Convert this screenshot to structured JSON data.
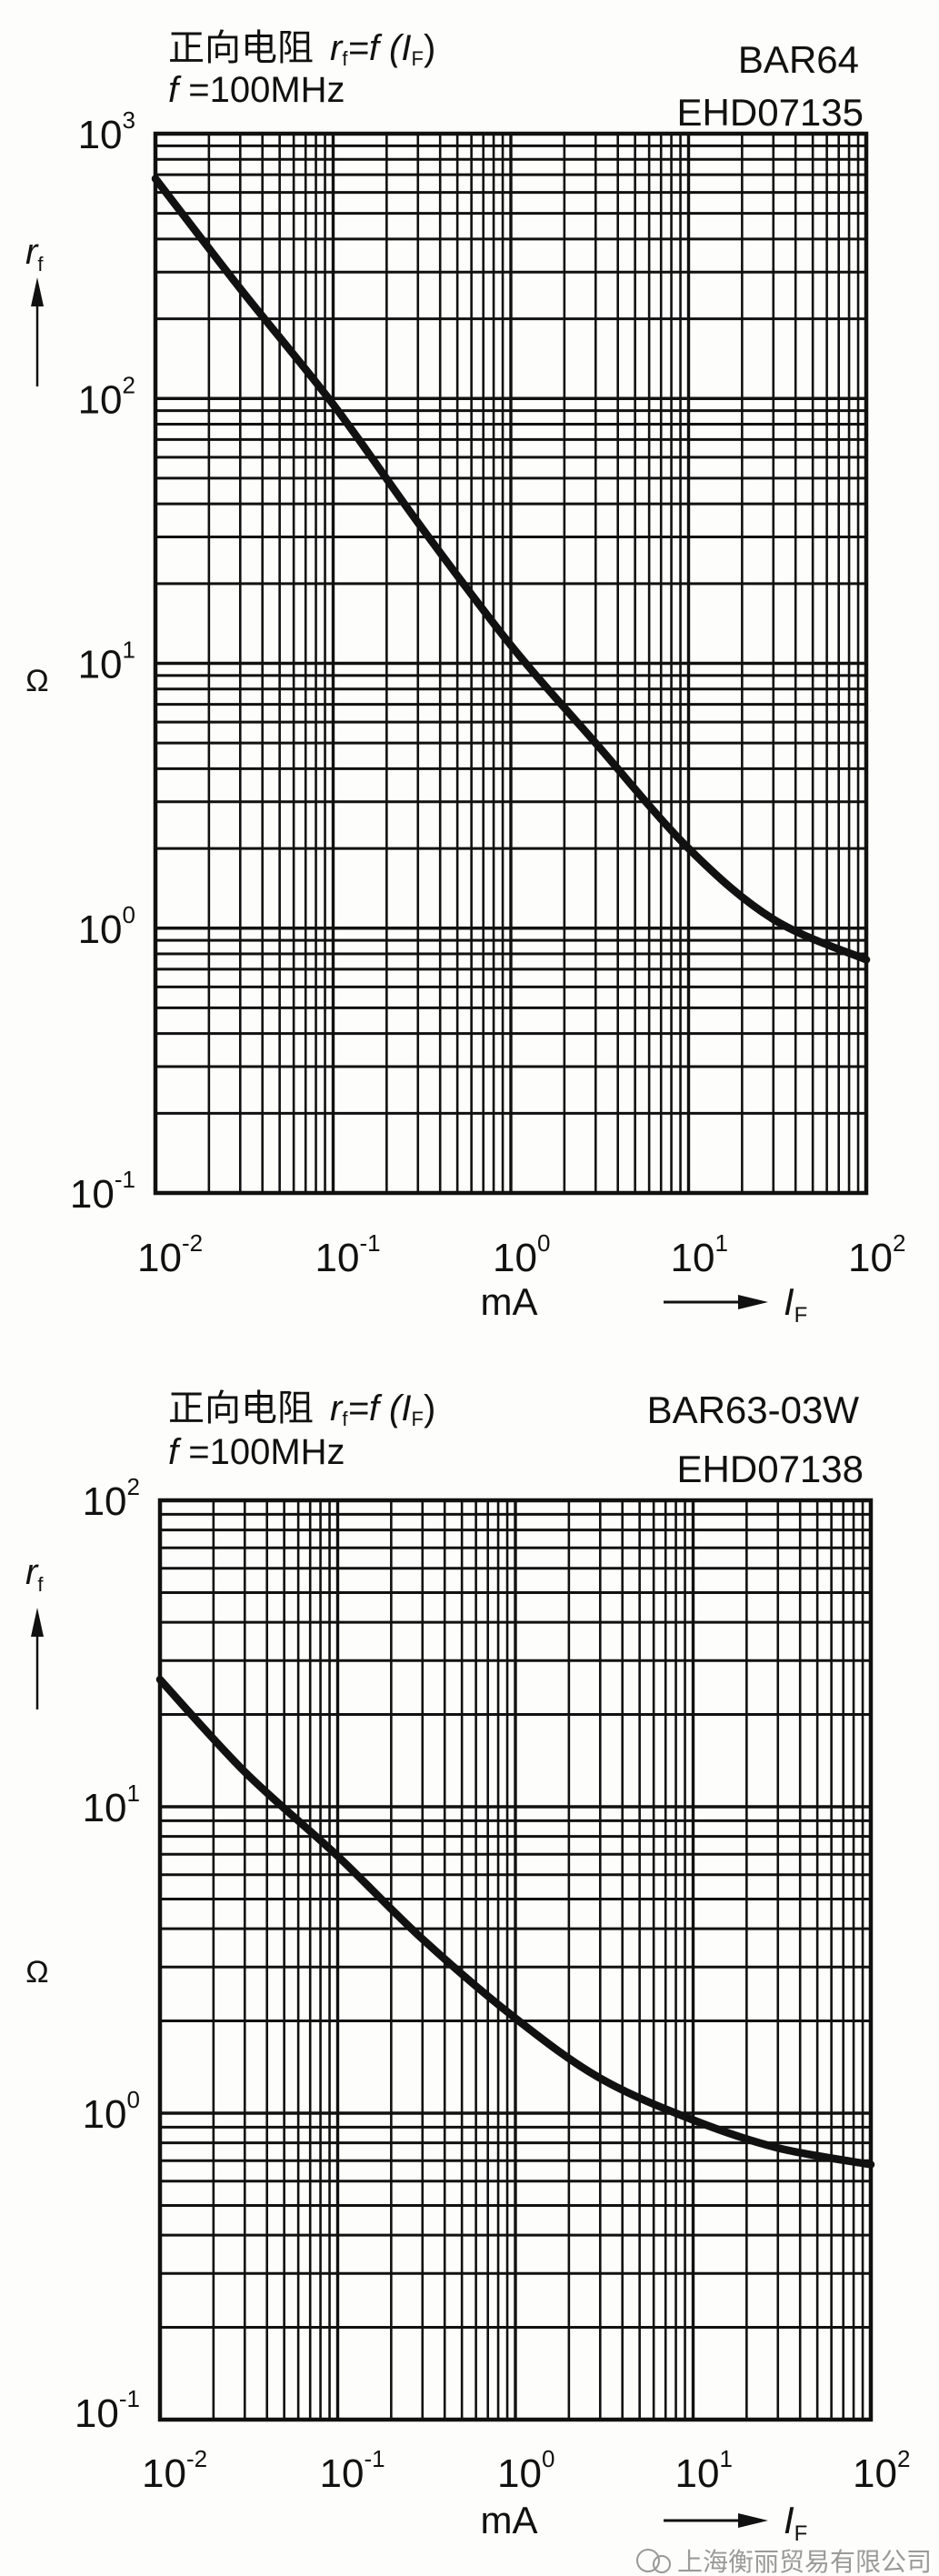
{
  "chart_data": [
    {
      "type": "line",
      "title_cn": "正向电阻",
      "title_formula": {
        "r": "r",
        "r_sub": "f",
        "eq": "=f (",
        "i": "I",
        "i_sub": "F",
        "close": ")"
      },
      "condition": {
        "f": "f",
        "value": " =100MHz"
      },
      "part_number": "BAR64",
      "figure_id": "EHD07135",
      "ylabel": {
        "symbol": "r",
        "sub": "f",
        "unit": "Ω"
      },
      "xlabel": {
        "unit": "mA",
        "symbol": "I",
        "sub": "F"
      },
      "x_scale": "log",
      "y_scale": "log",
      "xlim": [
        0.01,
        100
      ],
      "ylim": [
        0.1,
        1000
      ],
      "x_ticks": [
        {
          "base": "10",
          "exp": "-2"
        },
        {
          "base": "10",
          "exp": "-1"
        },
        {
          "base": "10",
          "exp": "0"
        },
        {
          "base": "10",
          "exp": "1"
        },
        {
          "base": "10",
          "exp": "2"
        }
      ],
      "y_ticks": [
        {
          "base": "10",
          "exp": "3"
        },
        {
          "base": "10",
          "exp": "2"
        },
        {
          "base": "10",
          "exp": "1"
        },
        {
          "base": "10",
          "exp": "0"
        },
        {
          "base": "10",
          "exp": "-1"
        }
      ],
      "grid": true,
      "series": [
        {
          "x": [
            0.01,
            0.03,
            0.1,
            0.3,
            1,
            3,
            10,
            30,
            100
          ],
          "y": [
            676,
            260,
            95,
            34,
            11.7,
            5.0,
            2.0,
            1.08,
            0.76
          ]
        }
      ]
    },
    {
      "type": "line",
      "title_cn": "正向电阻",
      "title_formula": {
        "r": "r",
        "r_sub": "f",
        "eq": "=f (",
        "i": "I",
        "i_sub": "F",
        "close": ")"
      },
      "condition": {
        "f": "f",
        "value": " =100MHz"
      },
      "part_number": "BAR63-03W",
      "figure_id": "EHD07138",
      "ylabel": {
        "symbol": "r",
        "sub": "f",
        "unit": "Ω"
      },
      "xlabel": {
        "unit": "mA",
        "symbol": "I",
        "sub": "F"
      },
      "x_scale": "log",
      "y_scale": "log",
      "xlim": [
        0.01,
        100
      ],
      "ylim": [
        0.1,
        100
      ],
      "x_ticks": [
        {
          "base": "10",
          "exp": "-2"
        },
        {
          "base": "10",
          "exp": "-1"
        },
        {
          "base": "10",
          "exp": "0"
        },
        {
          "base": "10",
          "exp": "1"
        },
        {
          "base": "10",
          "exp": "2"
        }
      ],
      "y_ticks": [
        {
          "base": "10",
          "exp": "2"
        },
        {
          "base": "10",
          "exp": "1"
        },
        {
          "base": "10",
          "exp": "0"
        },
        {
          "base": "10",
          "exp": "-1"
        }
      ],
      "grid": true,
      "series": [
        {
          "x": [
            0.01,
            0.03,
            0.1,
            0.3,
            1,
            3,
            10,
            30,
            100
          ],
          "y": [
            26,
            13,
            6.9,
            3.7,
            2.04,
            1.3,
            0.95,
            0.77,
            0.68
          ]
        }
      ]
    }
  ],
  "watermark": {
    "text": "上海衡丽贸易有限公司",
    "icon": "wechat-icon"
  },
  "colors": {
    "ink": "#111111",
    "paper": "#fdfdfb"
  }
}
